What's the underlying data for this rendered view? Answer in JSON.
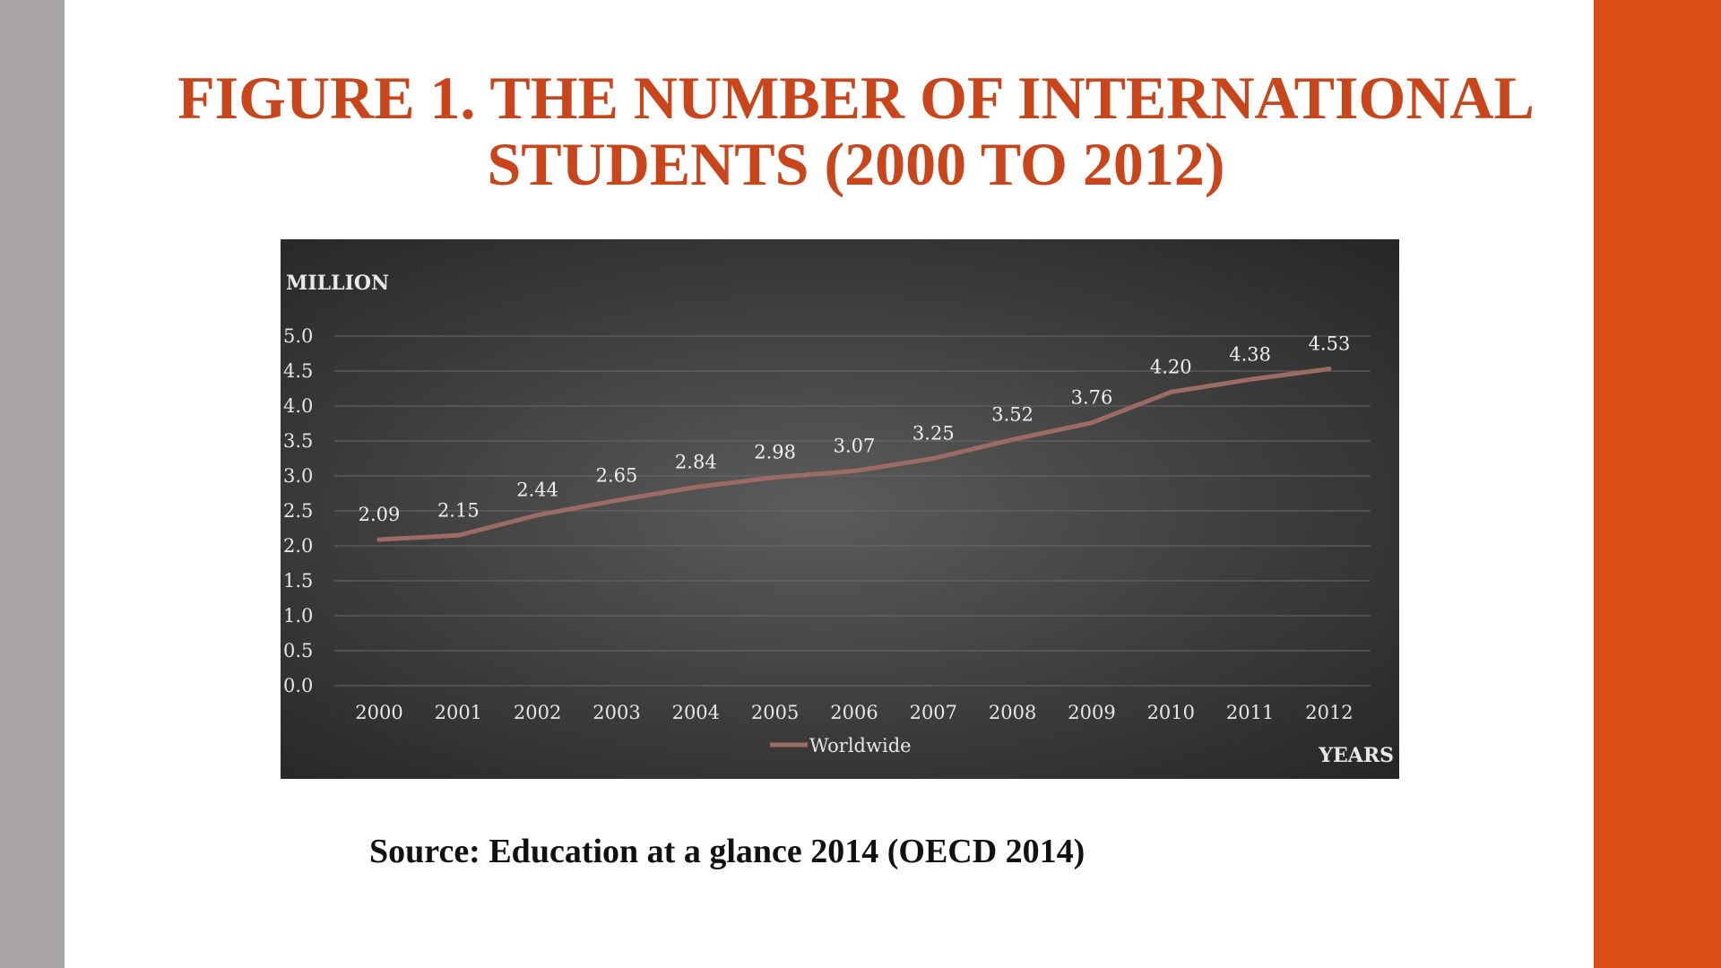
{
  "slide": {
    "title_line1": "FIGURE 1. THE NUMBER OF INTERNATIONAL",
    "title_line2": "STUDENTS (2000 TO 2012)",
    "source": "Source: Education at a glance 2014 (OECD 2014)"
  },
  "colors": {
    "title": "#c9451c",
    "right_bar": "#d94f16",
    "left_bar": "#a8a4a4",
    "series_line": "#9c6b63"
  },
  "chart_data": {
    "type": "line",
    "x": [
      "2000",
      "2001",
      "2002",
      "2003",
      "2004",
      "2005",
      "2006",
      "2007",
      "2008",
      "2009",
      "2010",
      "2011",
      "2012"
    ],
    "series": [
      {
        "name": "Worldwide",
        "values": [
          2.09,
          2.15,
          2.44,
          2.65,
          2.84,
          2.98,
          3.07,
          3.25,
          3.52,
          3.76,
          4.2,
          4.38,
          4.53
        ]
      }
    ],
    "data_labels": [
      "2.09",
      "2.15",
      "2.44",
      "2.65",
      "2.84",
      "2.98",
      "3.07",
      "3.25",
      "3.52",
      "3.76",
      "4.20",
      "4.38",
      "4.53"
    ],
    "yticks": [
      "0.0",
      "0.5",
      "1.0",
      "1.5",
      "2.0",
      "2.5",
      "3.0",
      "3.5",
      "4.0",
      "4.5",
      "5.0"
    ],
    "ylim": [
      0,
      5
    ],
    "ylabel": "MILLION",
    "xlabel": "YEARS",
    "grid": true,
    "legend": "bottom"
  }
}
